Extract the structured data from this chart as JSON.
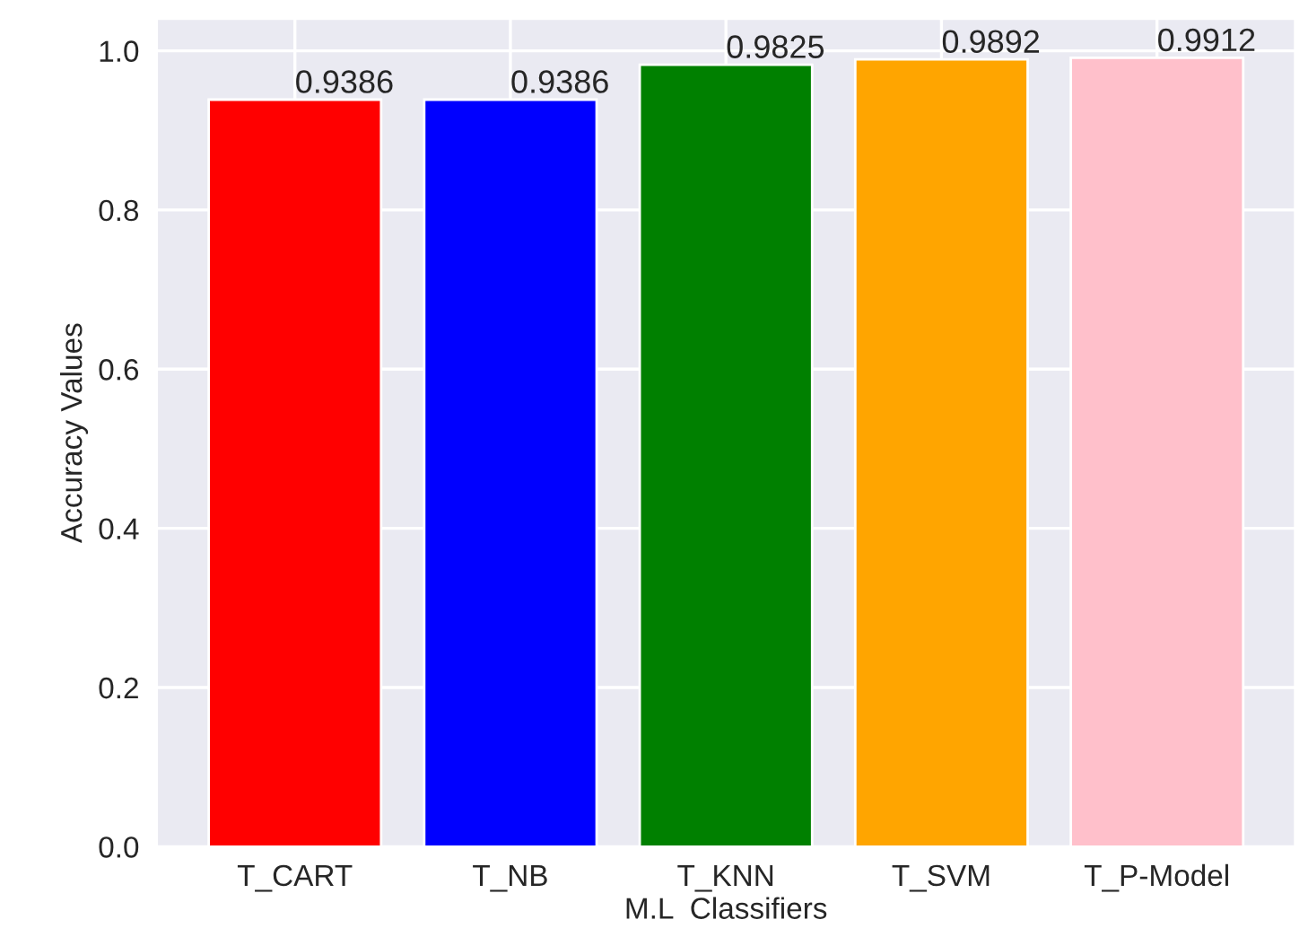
{
  "chart_data": {
    "type": "bar",
    "xlabel": "M.L  Classifiers",
    "ylabel": "Accuracy Values",
    "categories": [
      "T_CART",
      "T_NB",
      "T_KNN",
      "T_SVM",
      "T_P-Model"
    ],
    "values": [
      0.9386,
      0.9386,
      0.9825,
      0.9892,
      0.9912
    ],
    "colors": [
      "#ff0000",
      "#0000ff",
      "#008000",
      "#ffa500",
      "#ffc0cb"
    ],
    "ylim": [
      0,
      1.04
    ],
    "yticks": [
      {
        "value": 0,
        "label": "0.0"
      },
      0.2,
      0.4,
      0.6,
      0.8,
      {
        "value": 1,
        "label": "1.0"
      }
    ],
    "grid": true,
    "data_labels": true
  }
}
